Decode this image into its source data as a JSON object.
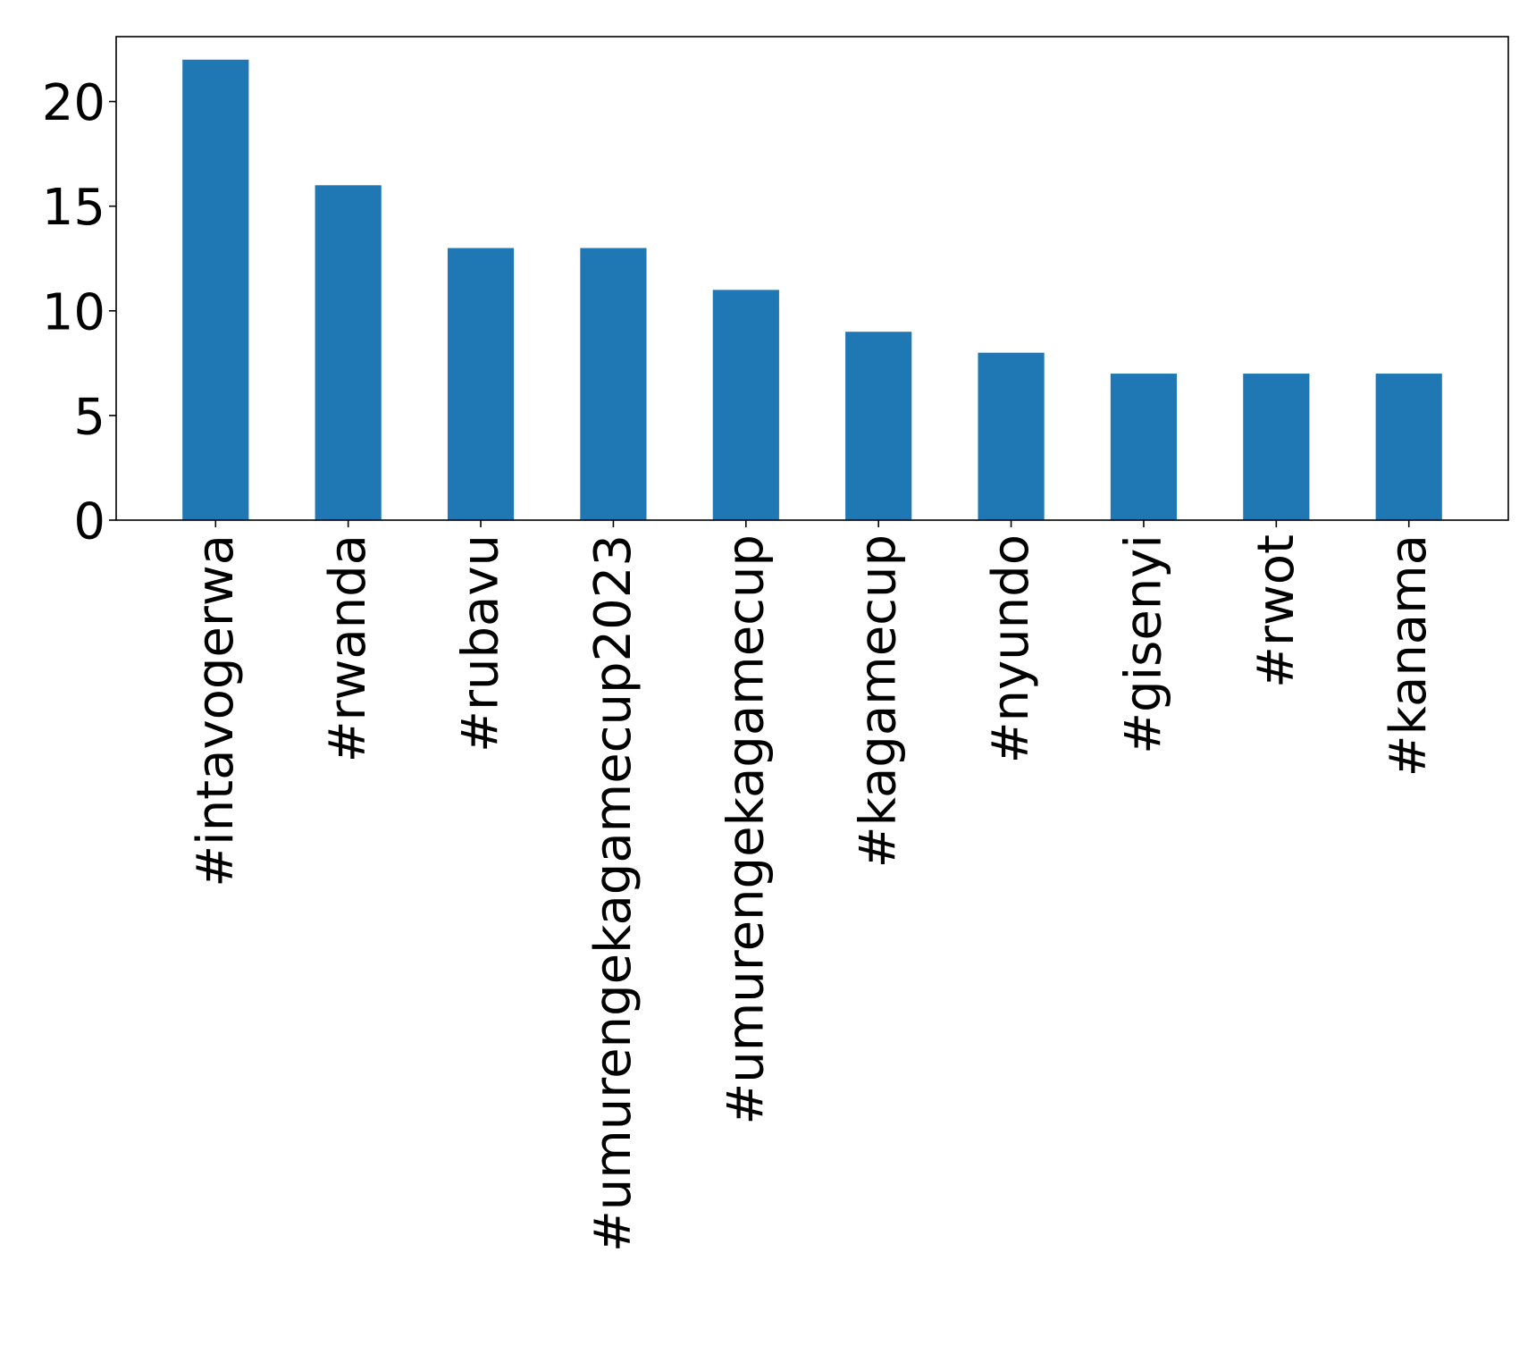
{
  "chart_data": {
    "type": "bar",
    "categories": [
      "#intavogerwa",
      "#rwanda",
      "#rubavu",
      "#umurengekagamecup2023",
      "#umurengekagamecup",
      "#kagamecup",
      "#nyundo",
      "#gisenyi",
      "#rwot",
      "#kanama"
    ],
    "values": [
      22,
      16,
      13,
      13,
      11,
      9,
      8,
      7,
      7,
      7
    ],
    "title": "",
    "xlabel": "",
    "ylabel": "",
    "ylim": [
      0,
      23.1
    ],
    "yticks": [
      0,
      5,
      10,
      15,
      20
    ],
    "bar_color": "#1f77b4",
    "grid": false,
    "legend": "none"
  }
}
